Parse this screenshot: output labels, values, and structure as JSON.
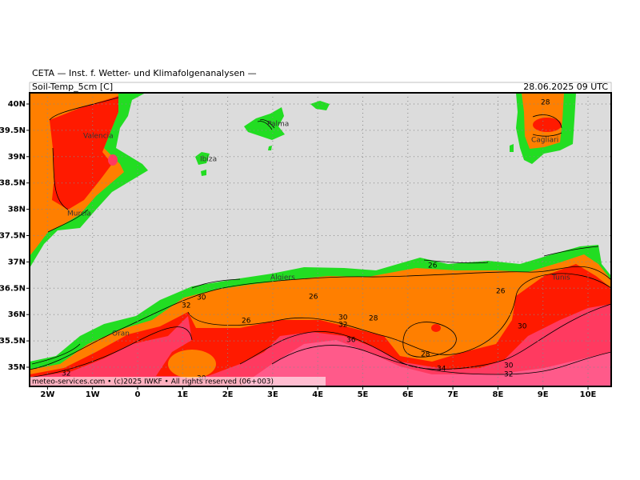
{
  "header": {
    "institute": "CETA — Inst. f. Wetter- und Klimafolgenanalysen —",
    "parameter": "Soil-Temp_5cm [C]",
    "valid_time": "28.06.2025 09 UTC"
  },
  "axes": {
    "lon_ticks": [
      {
        "value": -2,
        "label": "2W"
      },
      {
        "value": -1,
        "label": "1W"
      },
      0,
      {
        "value": 1,
        "label": "1E"
      },
      {
        "value": 2,
        "label": "2E"
      },
      {
        "value": 3,
        "label": "3E"
      },
      {
        "value": 4,
        "label": "4E"
      },
      {
        "value": 5,
        "label": "5E"
      },
      {
        "value": 6,
        "label": "6E"
      },
      {
        "value": 7,
        "label": "7E"
      },
      {
        "value": 8,
        "label": "8E"
      },
      {
        "value": 9,
        "label": "9E"
      },
      {
        "value": 10,
        "label": "10E"
      }
    ],
    "lat_ticks": [
      {
        "value": 40,
        "label": "40N"
      },
      {
        "value": 39.5,
        "label": "39.5N"
      },
      {
        "value": 39,
        "label": "39N"
      },
      {
        "value": 38.5,
        "label": "38.5N"
      },
      {
        "value": 38,
        "label": "38N"
      },
      {
        "value": 37.5,
        "label": "37.5N"
      },
      {
        "value": 37,
        "label": "37N"
      },
      {
        "value": 36.5,
        "label": "36.5N"
      },
      {
        "value": 36,
        "label": "36N"
      },
      {
        "value": 35.5,
        "label": "35.5N"
      },
      {
        "value": 35,
        "label": "35N"
      }
    ]
  },
  "places": [
    "Valencia",
    "Murcia",
    "Palma",
    "Ibiza",
    "Cagliari",
    "Tunis",
    "Algiers",
    "Oran"
  ],
  "contour_labels": [
    "28",
    "26",
    "26",
    "30",
    "32",
    "26",
    "30",
    "32",
    "28",
    "26",
    "30",
    "36",
    "28",
    "30",
    "32",
    "34",
    "32",
    "30"
  ],
  "footer": "meteo-services.com • (c)2025 IWKF • All rights reserved (06+003)"
}
